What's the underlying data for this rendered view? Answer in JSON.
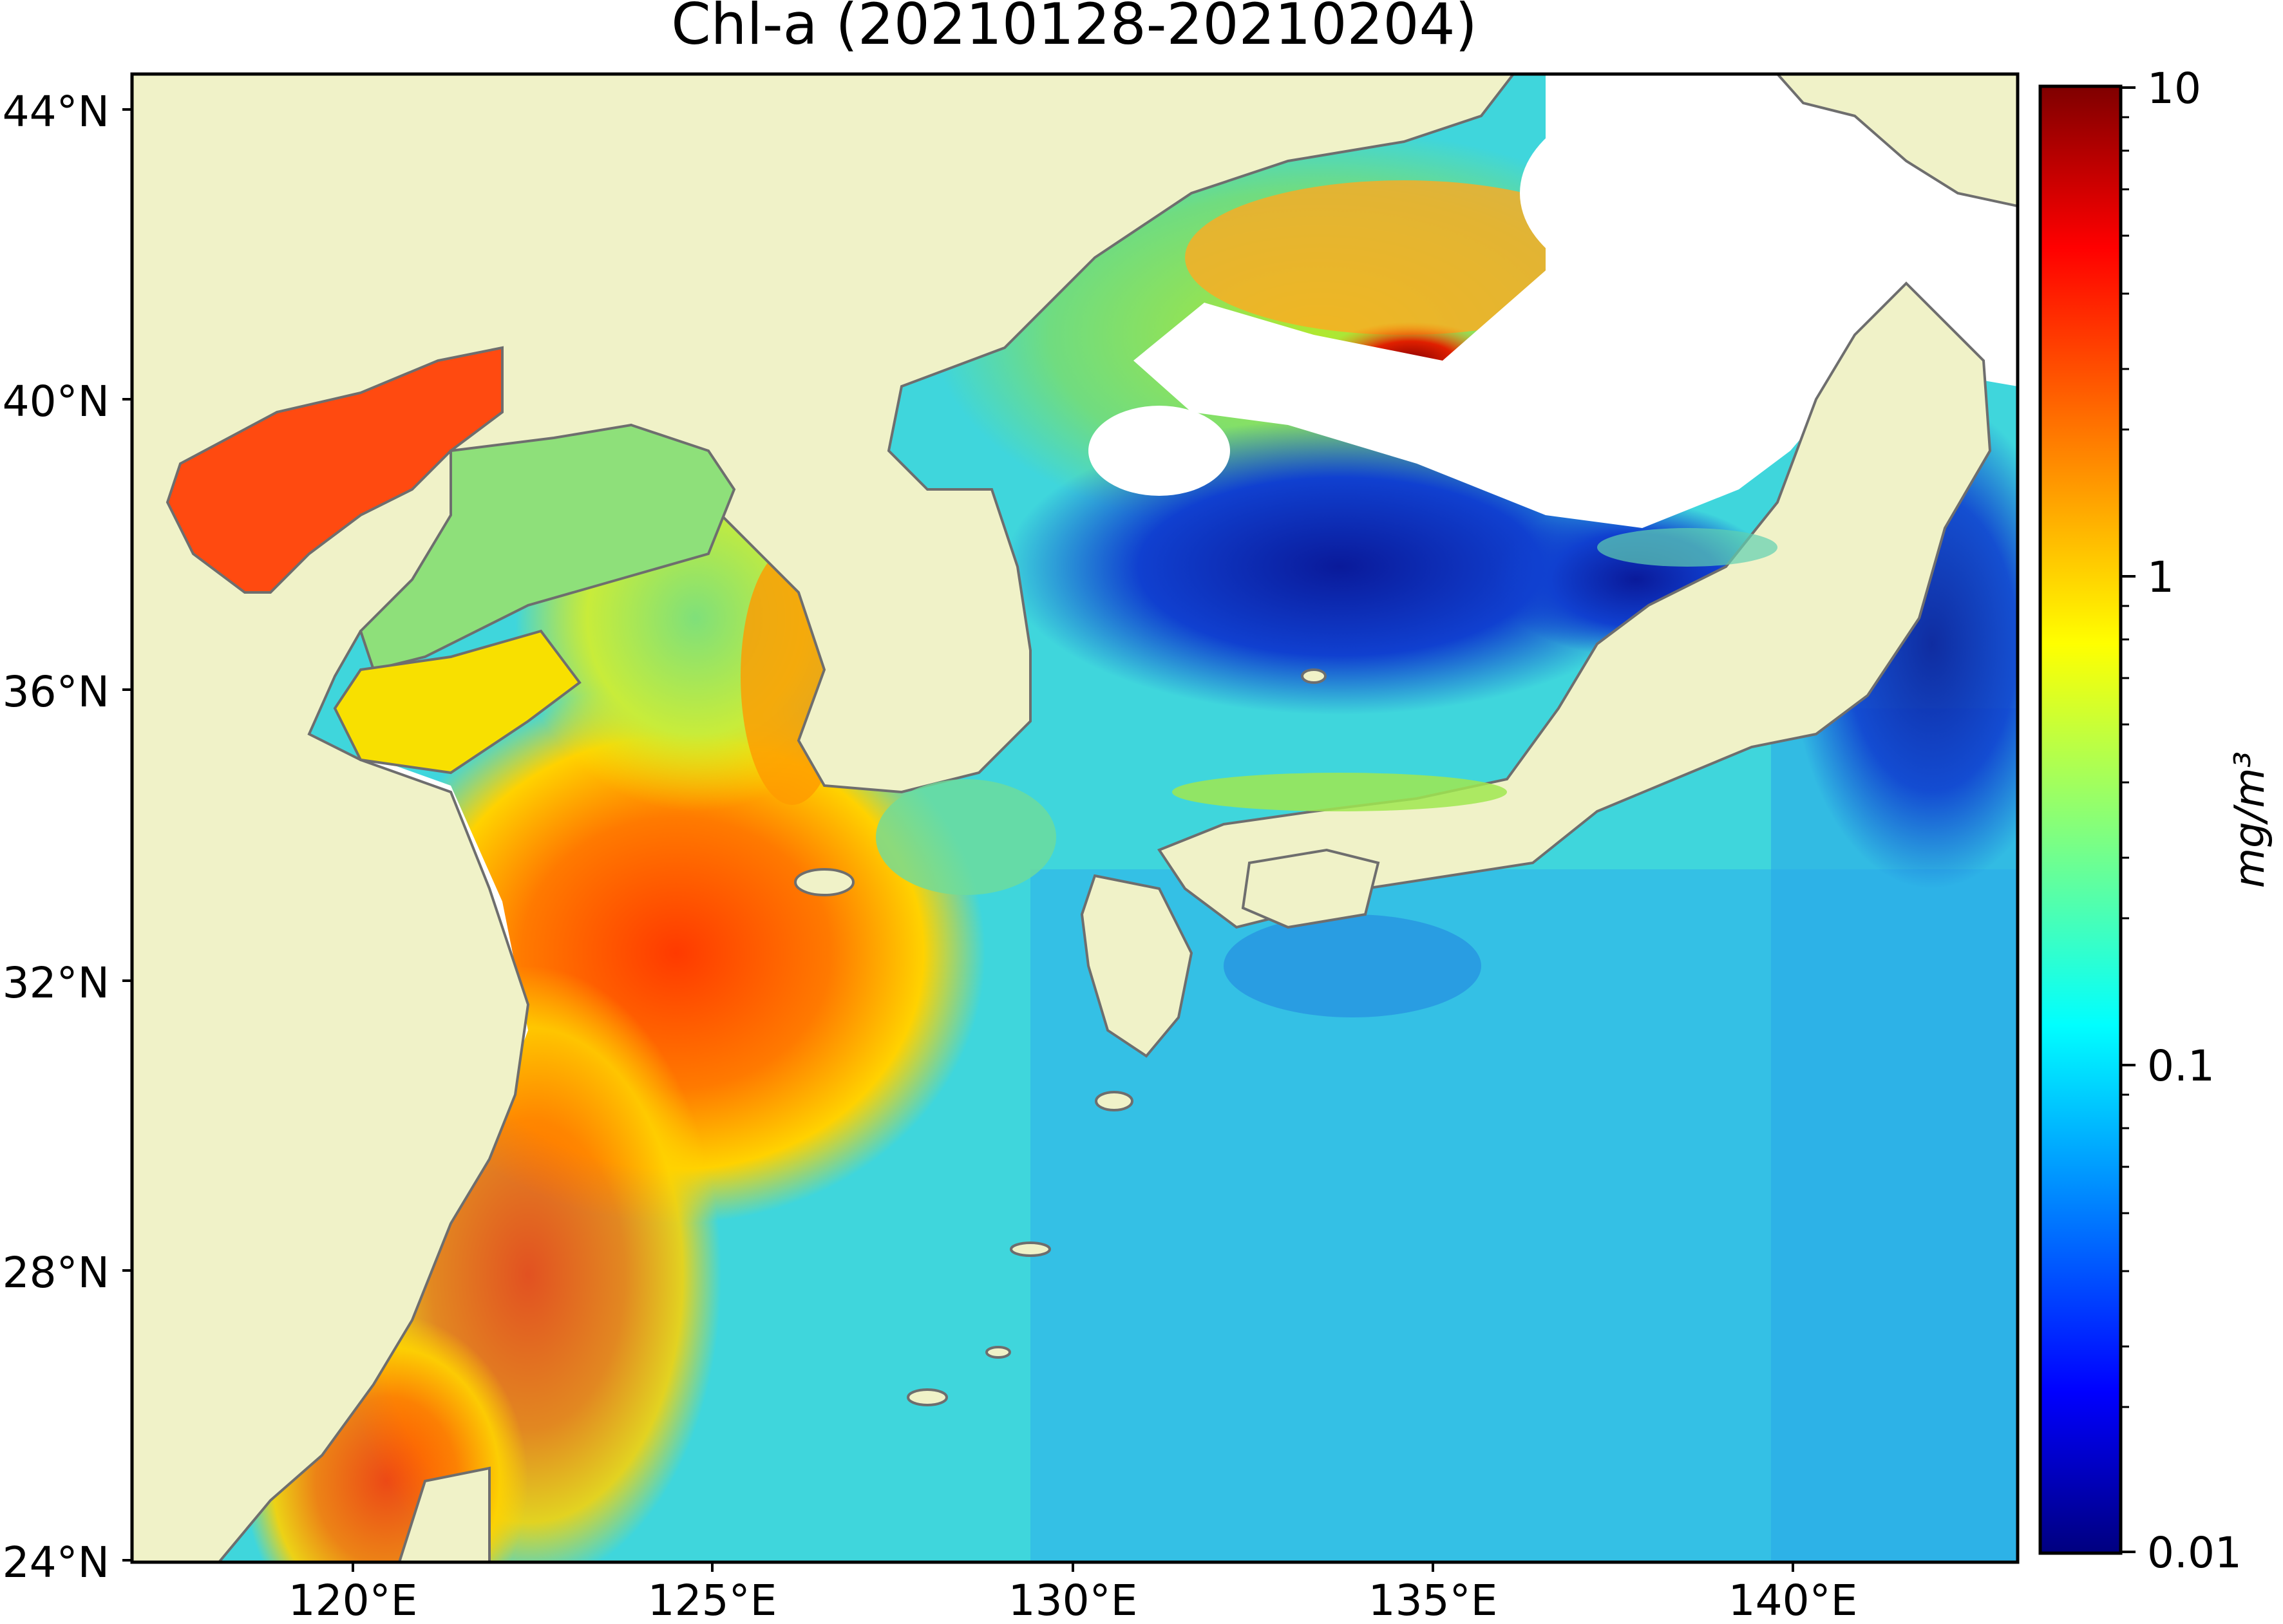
{
  "map": {
    "title": "Chl-a (20210128-20210204)",
    "lat_ticks": [
      "44°N",
      "40°N",
      "36°N",
      "32°N",
      "28°N",
      "24°N"
    ],
    "lon_ticks": [
      "120°E",
      "125°E",
      "130°E",
      "135°E",
      "140°E"
    ],
    "extent": {
      "lon": [
        116.5,
        143.0
      ],
      "lat": [
        24.0,
        44.5
      ]
    },
    "colors": {
      "land": "#f0f2c8",
      "no_data": "#ffffff",
      "coastline": "#6e6e6e"
    }
  },
  "colorbar": {
    "label": "mg/m³",
    "ticks": [
      "10",
      "1",
      "0.1",
      "0.01"
    ],
    "scale": "log",
    "range": [
      0.01,
      10
    ],
    "colormap": "jet"
  }
}
